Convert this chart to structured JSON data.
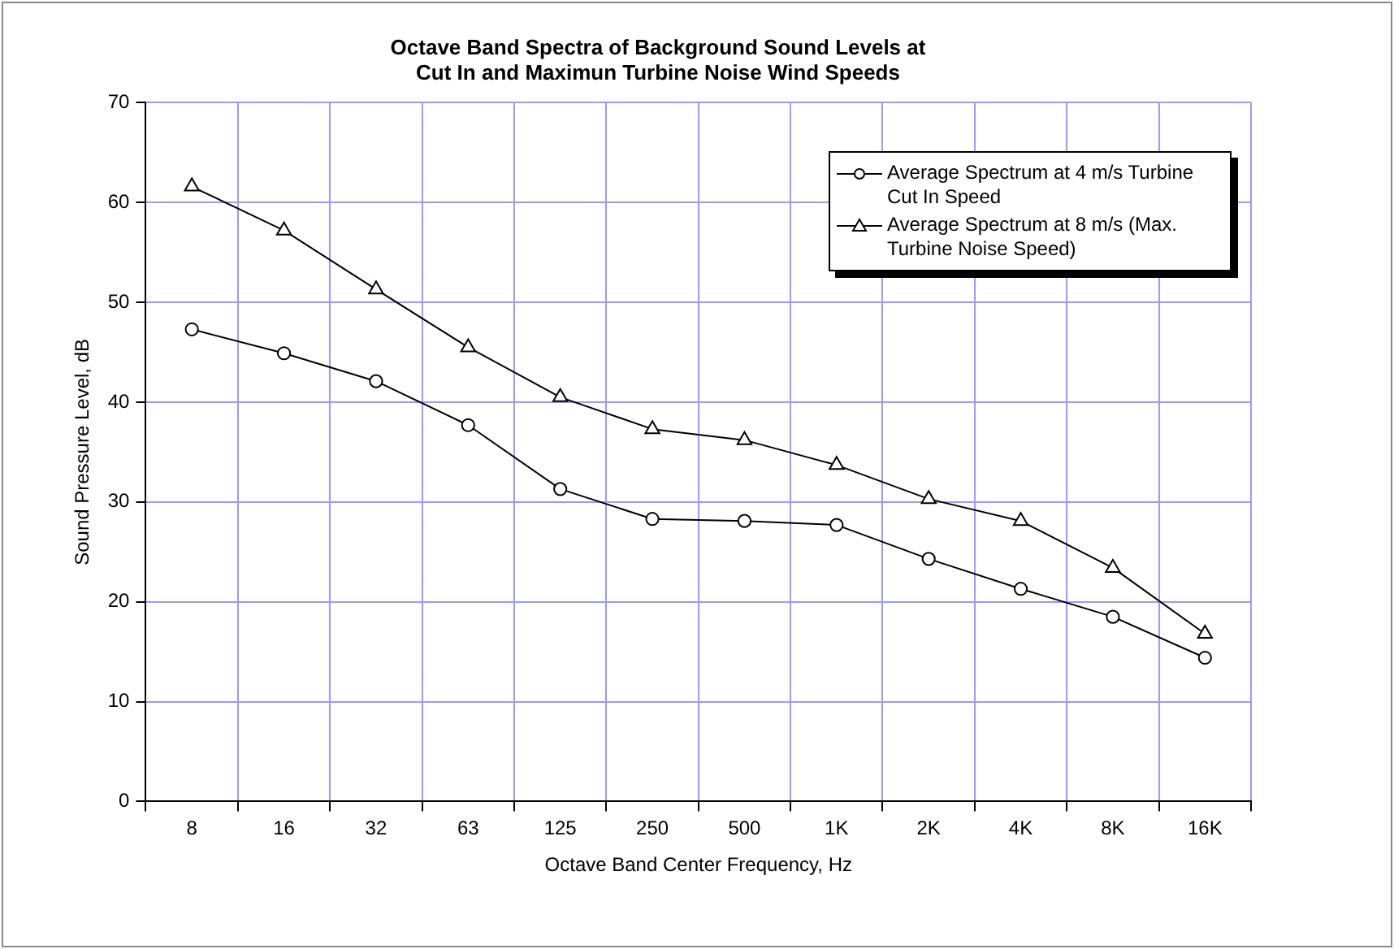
{
  "chart_data": {
    "type": "line",
    "title": "Octave Band Spectra of Background Sound Levels at\nCut In and Maximun Turbine Noise Wind Speeds",
    "xlabel": "Octave Band Center Frequency, Hz",
    "ylabel": "Sound Pressure Level, dB",
    "categories": [
      "8",
      "16",
      "32",
      "63",
      "125",
      "250",
      "500",
      "1K",
      "2K",
      "4K",
      "8K",
      "16K"
    ],
    "series": [
      {
        "name": "Average Spectrum at 4 m/s Turbine Cut In Speed",
        "color": "#000000",
        "marker": "circle",
        "values": [
          47.3,
          44.9,
          42.1,
          37.7,
          31.3,
          28.3,
          28.1,
          27.7,
          24.3,
          21.3,
          18.5,
          14.4
        ]
      },
      {
        "name": "Average Spectrum at 8 m/s (Max. Turbine Noise Speed)",
        "color": "#000000",
        "marker": "triangle",
        "values": [
          61.6,
          57.2,
          51.3,
          45.5,
          40.5,
          37.3,
          36.2,
          33.7,
          30.3,
          28.1,
          23.4,
          16.8
        ]
      }
    ],
    "ylim": [
      0,
      70
    ],
    "yticks": [
      0,
      10,
      20,
      30,
      40,
      50,
      60,
      70
    ],
    "grid": true,
    "legend": "top right",
    "line_style": "solid"
  }
}
